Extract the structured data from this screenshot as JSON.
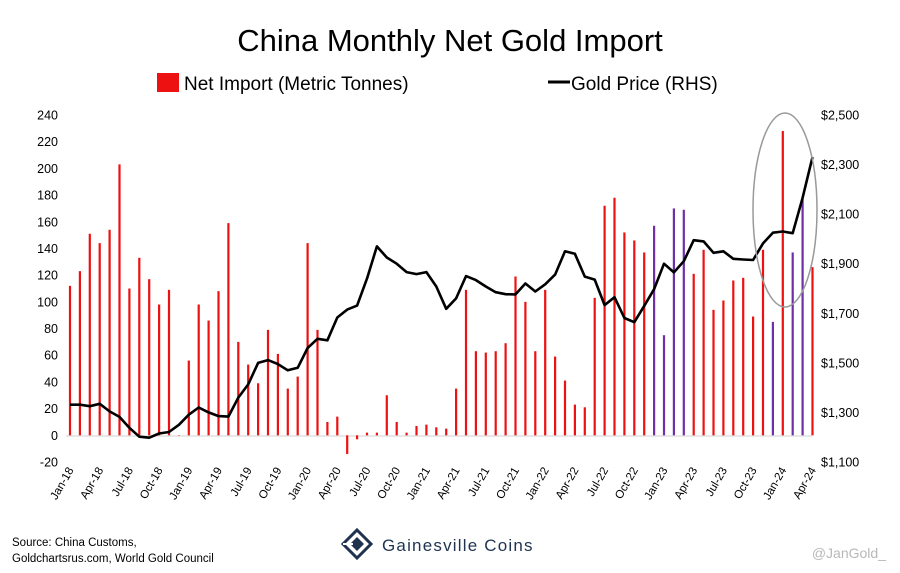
{
  "chart_data": {
    "type": "bar",
    "title": "China Monthly Net Gold Import",
    "legend": {
      "placement": "top",
      "bars_label": "Net Import (Metric Tonnes)",
      "line_label": "Gold Price (RHS)"
    },
    "colors": {
      "bar": "#ee1111",
      "bar_highlight": "#6e2fa8",
      "line": "#000000",
      "circle": "#999999"
    },
    "y_left": {
      "min": -20,
      "max": 240,
      "step": 20,
      "tick_labels": [
        "-20",
        "0",
        "20",
        "40",
        "60",
        "80",
        "100",
        "120",
        "140",
        "160",
        "180",
        "200",
        "220",
        "240"
      ]
    },
    "y_right": {
      "min": 1100,
      "max": 2500,
      "step": 200,
      "tick_labels": [
        "$1,100",
        "$1,300",
        "$1,500",
        "$1,700",
        "$1,900",
        "$2,100",
        "$2,300",
        "$2,500"
      ]
    },
    "x_tick_labels": [
      "Jan-18",
      "Apr-18",
      "Jul-18",
      "Oct-18",
      "Jan-19",
      "Apr-19",
      "Jul-19",
      "Oct-19",
      "Jan-20",
      "Apr-20",
      "Jul-20",
      "Oct-20",
      "Jan-21",
      "Apr-21",
      "Jul-21",
      "Oct-21",
      "Jan-22",
      "Apr-22",
      "Jul-22",
      "Oct-22",
      "Jan-23",
      "Apr-23",
      "Jul-23",
      "Oct-23",
      "Jan-24",
      "Apr-24"
    ],
    "months": [
      "Jan-18",
      "Feb-18",
      "Mar-18",
      "Apr-18",
      "May-18",
      "Jun-18",
      "Jul-18",
      "Aug-18",
      "Sep-18",
      "Oct-18",
      "Nov-18",
      "Dec-18",
      "Jan-19",
      "Feb-19",
      "Mar-19",
      "Apr-19",
      "May-19",
      "Jun-19",
      "Jul-19",
      "Aug-19",
      "Sep-19",
      "Oct-19",
      "Nov-19",
      "Dec-19",
      "Jan-20",
      "Feb-20",
      "Mar-20",
      "Apr-20",
      "May-20",
      "Jun-20",
      "Jul-20",
      "Aug-20",
      "Sep-20",
      "Oct-20",
      "Nov-20",
      "Dec-20",
      "Jan-21",
      "Feb-21",
      "Mar-21",
      "Apr-21",
      "May-21",
      "Jun-21",
      "Jul-21",
      "Aug-21",
      "Sep-21",
      "Oct-21",
      "Nov-21",
      "Dec-21",
      "Jan-22",
      "Feb-22",
      "Mar-22",
      "Apr-22",
      "May-22",
      "Jun-22",
      "Jul-22",
      "Aug-22",
      "Sep-22",
      "Oct-22",
      "Nov-22",
      "Dec-22",
      "Jan-23",
      "Feb-23",
      "Mar-23",
      "Apr-23",
      "May-23",
      "Jun-23",
      "Jul-23",
      "Aug-23",
      "Sep-23",
      "Oct-23",
      "Nov-23",
      "Dec-23",
      "Jan-24",
      "Feb-24",
      "Mar-24",
      "Apr-24"
    ],
    "net_import_tonnes": [
      112,
      123,
      151,
      144,
      154,
      203,
      110,
      133,
      117,
      98,
      109,
      0,
      56,
      98,
      86,
      108,
      159,
      70,
      53,
      39,
      79,
      61,
      35,
      44,
      144,
      79,
      10,
      14,
      -14,
      -3,
      2,
      2,
      30,
      10,
      2,
      7,
      8,
      6,
      5,
      35,
      109,
      63,
      62,
      63,
      69,
      119,
      100,
      63,
      109,
      59,
      41,
      23,
      21,
      103,
      172,
      178,
      152,
      146,
      137,
      157,
      75,
      170,
      169,
      121,
      139,
      94,
      101,
      116,
      118,
      89,
      139,
      85,
      228,
      137,
      177,
      126
    ],
    "highlighted_months": [
      "Dec-22",
      "Jan-23",
      "Feb-23",
      "Mar-23",
      "Dec-23",
      "Feb-24",
      "Mar-24"
    ],
    "gold_price_usd": [
      1331,
      1331,
      1325,
      1335,
      1304,
      1282,
      1238,
      1202,
      1198,
      1215,
      1221,
      1250,
      1291,
      1320,
      1300,
      1285,
      1283,
      1360,
      1413,
      1500,
      1511,
      1495,
      1470,
      1480,
      1560,
      1597,
      1591,
      1683,
      1715,
      1731,
      1840,
      1970,
      1925,
      1900,
      1866,
      1858,
      1866,
      1808,
      1718,
      1760,
      1850,
      1834,
      1808,
      1785,
      1777,
      1776,
      1820,
      1788,
      1817,
      1856,
      1950,
      1940,
      1848,
      1836,
      1733,
      1765,
      1681,
      1664,
      1730,
      1797,
      1900,
      1865,
      1910,
      1995,
      1990,
      1944,
      1950,
      1920,
      1917,
      1915,
      1982,
      2025,
      2030,
      2023,
      2166,
      2330
    ]
  },
  "footer": {
    "source_line1": "Source: China Customs,",
    "source_line2": "Goldchartsrus.com, World Gold Council",
    "brand": "Gainesville Coins",
    "brand_icon": "gainesville-logo-icon",
    "handle": "@JanGold_"
  }
}
